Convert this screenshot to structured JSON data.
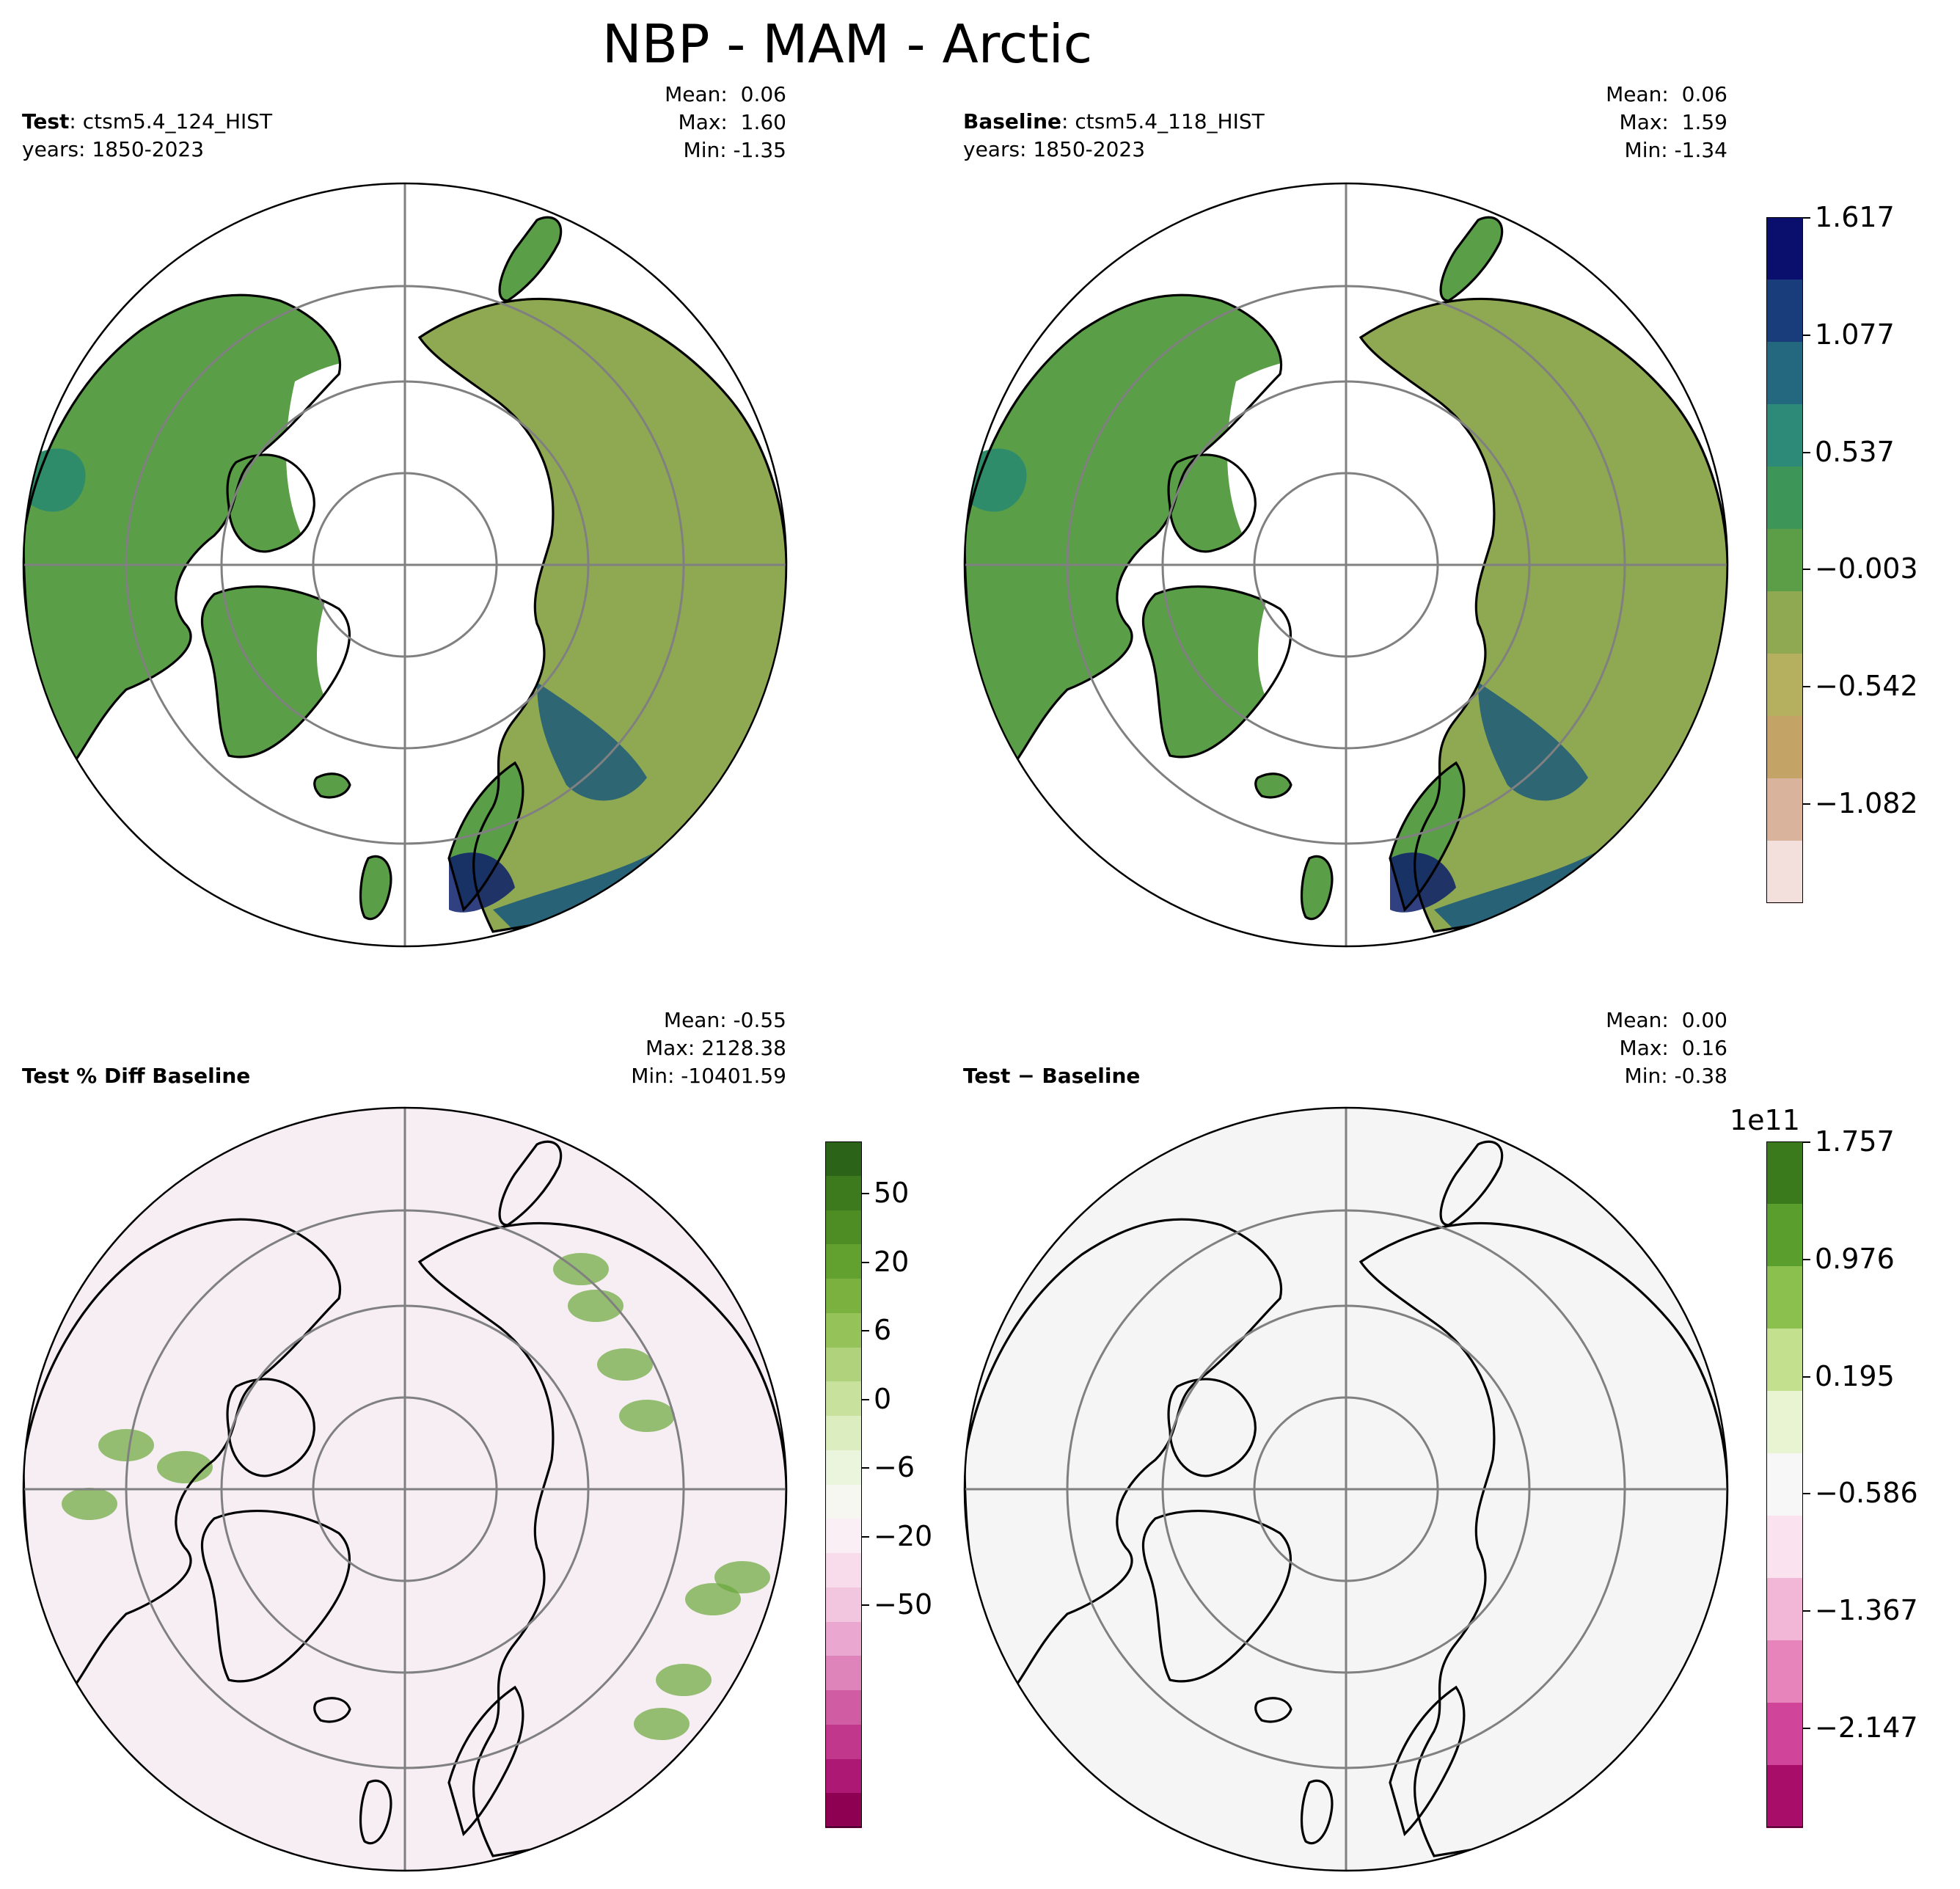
{
  "title": "NBP - MAM - Arctic",
  "colors": {
    "land_green": "#5a9e48",
    "land_olive": "#8fa852",
    "land_teal": "#2f8c6a",
    "land_blue": "#1d5a7a",
    "land_navy": "#0d1f6b",
    "diff_pink": "#f7eef4",
    "diff_green": "#6aa83a",
    "abs_gray": "#f5f5f5",
    "grid": "#808080"
  },
  "panels": [
    {
      "id": "test",
      "label_bold": "Test",
      "label_rest": ": ctsm5.4_124_HIST",
      "years": "years: 1850-2023",
      "stats": {
        "mean": "Mean:  0.06",
        "max": "Max:  1.60",
        "min": "Min: -1.35"
      },
      "fill": "nbp"
    },
    {
      "id": "baseline",
      "label_bold": "Baseline",
      "label_rest": ": ctsm5.4_118_HIST",
      "years": "years: 1850-2023",
      "stats": {
        "mean": "Mean:  0.06",
        "max": "Max:  1.59",
        "min": "Min: -1.34"
      },
      "fill": "nbp"
    },
    {
      "id": "pctdiff",
      "label_bold": "Test % Diff Baseline",
      "label_rest": "",
      "years": "",
      "stats": {
        "mean": "Mean: -0.55",
        "max": "Max: 2128.38",
        "min": "Min: -10401.59"
      },
      "fill": "pct"
    },
    {
      "id": "absdiff",
      "label_bold": "Test − Baseline",
      "label_rest": "",
      "years": "",
      "stats": {
        "mean": "Mean:  0.00",
        "max": "Max:  0.16",
        "min": "Min: -0.38"
      },
      "fill": "abs"
    }
  ],
  "colorbars": [
    {
      "id": "nbp",
      "multiplier": "",
      "ticks": [
        "1.617",
        "1.077",
        "0.537",
        "−0.003",
        "−0.542",
        "−1.082"
      ],
      "colors": [
        "#0a0f6e",
        "#193c7a",
        "#246880",
        "#2e8a78",
        "#3e9558",
        "#5c9e48",
        "#8fa852",
        "#b5b060",
        "#c4a466",
        "#dab39c",
        "#f3e0dc"
      ]
    },
    {
      "id": "pct",
      "multiplier": "",
      "ticks": [
        "50",
        "20",
        "6",
        "0",
        "−6",
        "−20",
        "−50"
      ],
      "colors": [
        "#2b6419",
        "#3d7a1e",
        "#4d8d24",
        "#62a030",
        "#7bb13e",
        "#96c25a",
        "#b0d27c",
        "#c8e29e",
        "#dceebf",
        "#ebf5dd",
        "#f7f7f2",
        "#faeff5",
        "#f8dcec",
        "#f3c6e0",
        "#eaa7cf",
        "#df84bb",
        "#d05da3",
        "#c0378b",
        "#ac1873",
        "#8e0152"
      ]
    },
    {
      "id": "abs",
      "multiplier": "1e11",
      "ticks": [
        "1.757",
        "0.976",
        "0.195",
        "−0.586",
        "−1.367",
        "−2.147"
      ],
      "colors": [
        "#3a7a1c",
        "#5a9e2e",
        "#8cc04e",
        "#c2e08e",
        "#e8f4d2",
        "#f7f7f7",
        "#fbe2ef",
        "#f2b6d6",
        "#e684bb",
        "#d0459a",
        "#a80d6a"
      ]
    }
  ]
}
